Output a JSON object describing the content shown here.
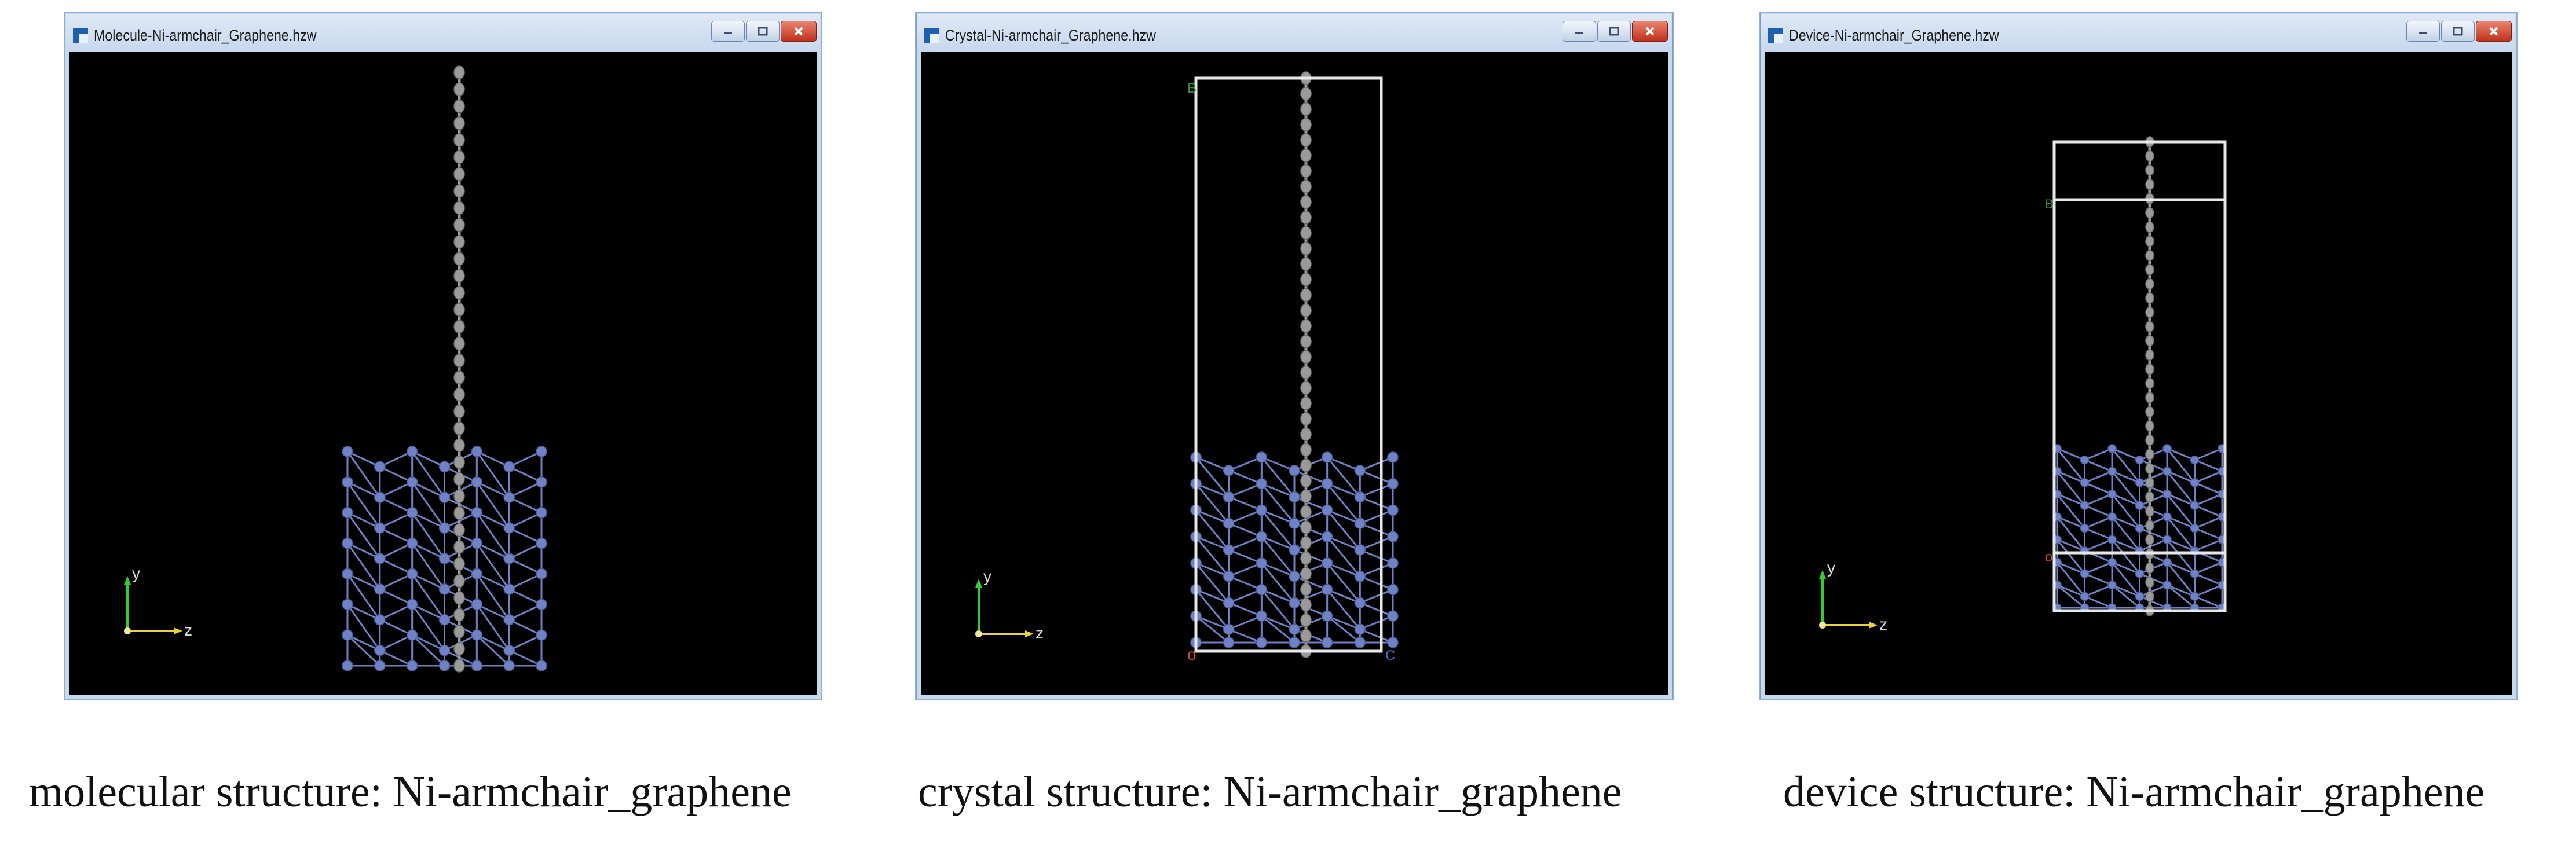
{
  "windows": [
    {
      "title": "Molecule-Ni-armchair_Graphene.hzw",
      "caption": "molecular structure: Ni-armchair_graphene",
      "mode": "molecule"
    },
    {
      "title": "Crystal-Ni-armchair_Graphene.hzw",
      "caption": "crystal structure: Ni-armchair_graphene",
      "mode": "crystal"
    },
    {
      "title": "Device-Ni-armchair_Graphene.hzw",
      "caption": "device structure: Ni-armchair_graphene",
      "mode": "device"
    }
  ],
  "axis_labels": {
    "y": "y",
    "z": "z"
  },
  "cell_labels": {
    "origin": "o",
    "b": "B",
    "c": "C"
  },
  "colors": {
    "background": "#000000",
    "nickel_atom": "#6f82c6",
    "carbon_atom": "#9a9a9a",
    "cell_edge": "#e8e8e8",
    "axis_y": "#33cc33",
    "axis_z": "#e8d23a",
    "title_bar": "#c9d9ec",
    "close_button": "#c2301a"
  },
  "icons": [
    "app-icon",
    "minimize-icon",
    "maximize-icon",
    "close-icon"
  ]
}
